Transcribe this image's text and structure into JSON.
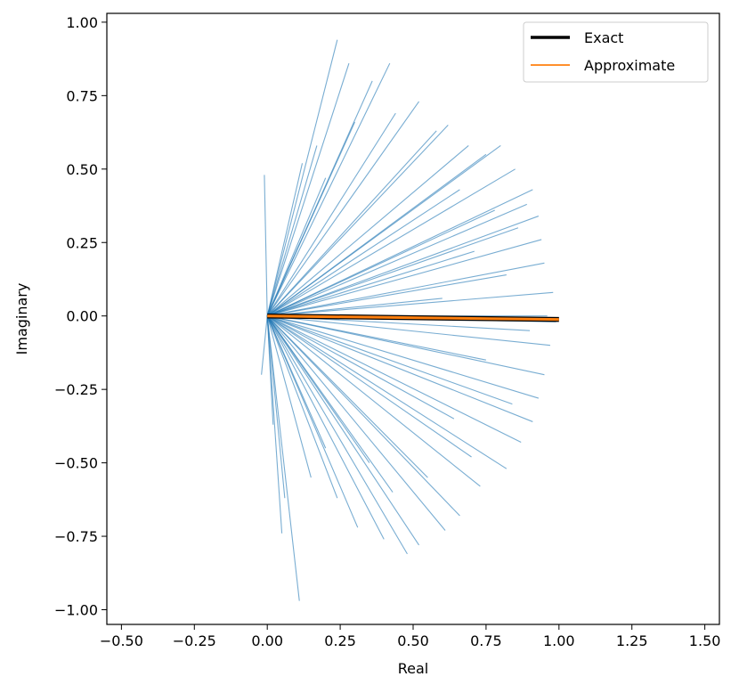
{
  "chart_data": {
    "type": "line",
    "title": "",
    "xlabel": "Real",
    "ylabel": "Imaginary",
    "xlim": [
      -0.55,
      1.55
    ],
    "ylim": [
      -1.05,
      1.03
    ],
    "xticks": [
      -0.5,
      -0.25,
      0.0,
      0.25,
      0.5,
      0.75,
      1.0,
      1.25,
      1.5
    ],
    "xtick_labels": [
      "−0.50",
      "−0.25",
      "0.00",
      "0.25",
      "0.50",
      "0.75",
      "1.00",
      "1.25",
      "1.50"
    ],
    "yticks": [
      1.0,
      0.75,
      0.5,
      0.25,
      0.0,
      -0.25,
      -0.5,
      -0.75,
      -1.0
    ],
    "ytick_labels": [
      "1.00",
      "0.75",
      "0.50",
      "0.25",
      "0.00",
      "−0.25",
      "−0.50",
      "−0.75",
      "−1.00"
    ],
    "grid": false,
    "legend_position": "top-right",
    "series": [
      {
        "name": "Exact",
        "color": "#000000",
        "x": [
          0.0,
          1.0
        ],
        "y": [
          0.0,
          -0.012
        ]
      },
      {
        "name": "Approximate",
        "color": "#ff7f0e",
        "x": [
          0.0,
          1.0
        ],
        "y": [
          0.0,
          -0.012
        ]
      }
    ],
    "unlabeled_series": {
      "color": "#1f77b4",
      "description_of_shape": "many rays from origin",
      "rays": [
        [
          0.24,
          0.94
        ],
        [
          0.28,
          0.86
        ],
        [
          0.42,
          0.86
        ],
        [
          0.36,
          0.8
        ],
        [
          0.52,
          0.73
        ],
        [
          0.58,
          0.63
        ],
        [
          0.69,
          0.58
        ],
        [
          0.8,
          0.58
        ],
        [
          0.85,
          0.5
        ],
        [
          0.91,
          0.43
        ],
        [
          0.93,
          0.34
        ],
        [
          0.94,
          0.26
        ],
        [
          0.95,
          0.18
        ],
        [
          0.98,
          0.08
        ],
        [
          0.99,
          -0.02
        ],
        [
          0.97,
          -0.1
        ],
        [
          0.95,
          -0.2
        ],
        [
          0.93,
          -0.28
        ],
        [
          0.91,
          -0.36
        ],
        [
          0.87,
          -0.43
        ],
        [
          0.82,
          -0.52
        ],
        [
          0.73,
          -0.58
        ],
        [
          0.66,
          -0.68
        ],
        [
          0.61,
          -0.73
        ],
        [
          0.52,
          -0.78
        ],
        [
          0.48,
          -0.81
        ],
        [
          0.4,
          -0.76
        ],
        [
          0.31,
          -0.72
        ],
        [
          0.24,
          -0.62
        ],
        [
          0.11,
          -0.97
        ],
        [
          0.05,
          -0.74
        ],
        [
          0.06,
          -0.62
        ],
        [
          0.02,
          -0.37
        ],
        [
          -0.02,
          -0.2
        ],
        [
          -0.01,
          0.48
        ],
        [
          0.12,
          0.52
        ],
        [
          0.17,
          0.58
        ],
        [
          0.44,
          0.69
        ],
        [
          0.62,
          0.65
        ],
        [
          0.75,
          0.55
        ],
        [
          0.3,
          0.66
        ],
        [
          0.2,
          0.47
        ],
        [
          0.66,
          0.43
        ],
        [
          0.78,
          0.36
        ],
        [
          0.86,
          0.3
        ],
        [
          0.71,
          0.22
        ],
        [
          0.82,
          0.14
        ],
        [
          0.6,
          0.06
        ],
        [
          0.9,
          -0.05
        ],
        [
          0.75,
          -0.15
        ],
        [
          0.84,
          -0.3
        ],
        [
          0.64,
          -0.35
        ],
        [
          0.7,
          -0.48
        ],
        [
          0.55,
          -0.55
        ],
        [
          0.43,
          -0.6
        ],
        [
          0.35,
          -0.5
        ],
        [
          0.2,
          -0.45
        ],
        [
          0.15,
          -0.55
        ],
        [
          0.89,
          0.38
        ],
        [
          0.96,
          0.0
        ]
      ]
    }
  }
}
